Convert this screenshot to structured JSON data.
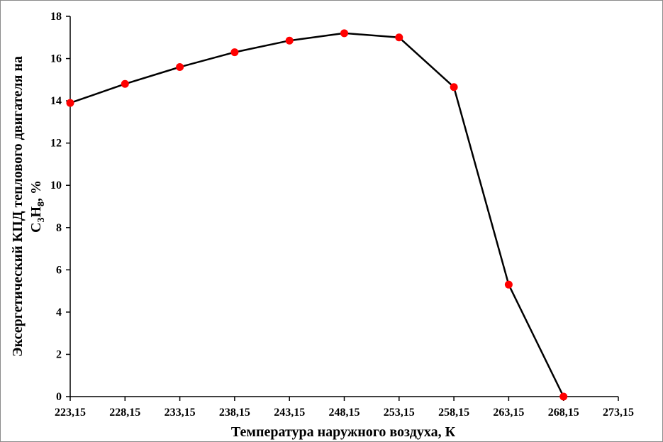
{
  "chart_data": {
    "type": "line",
    "title": "",
    "xlabel": "Температура наружного воздуха, К",
    "ylabel_line1": "Эксергетический КПД теплового двигателя на",
    "ylabel_line2_prefix": "C",
    "ylabel_sub1": "3",
    "ylabel_mid": "H",
    "ylabel_sub2": "8",
    "ylabel_suffix": ", %",
    "xlim": [
      223.15,
      273.15
    ],
    "ylim": [
      0,
      18
    ],
    "x_ticks": [
      223.15,
      228.15,
      233.15,
      238.15,
      243.15,
      248.15,
      253.15,
      258.15,
      263.15,
      268.15,
      273.15
    ],
    "x_tick_labels": [
      "223,15",
      "228,15",
      "233,15",
      "238,15",
      "243,15",
      "248,15",
      "253,15",
      "258,15",
      "263,15",
      "268,15",
      "273,15"
    ],
    "y_ticks": [
      0,
      2,
      4,
      6,
      8,
      10,
      12,
      14,
      16,
      18
    ],
    "y_tick_labels": [
      "0",
      "2",
      "4",
      "6",
      "8",
      "10",
      "12",
      "14",
      "16",
      "18"
    ],
    "grid": false,
    "legend": "none",
    "series": [
      {
        "x": [
          223.15,
          228.15,
          233.15,
          238.15,
          243.15,
          248.15,
          253.15,
          258.15,
          263.15,
          268.15
        ],
        "y": [
          13.9,
          14.8,
          15.6,
          16.3,
          16.85,
          17.2,
          17.0,
          14.65,
          5.3,
          0.0
        ],
        "line_color": "#000000",
        "marker_color": "#ff0000"
      }
    ]
  }
}
